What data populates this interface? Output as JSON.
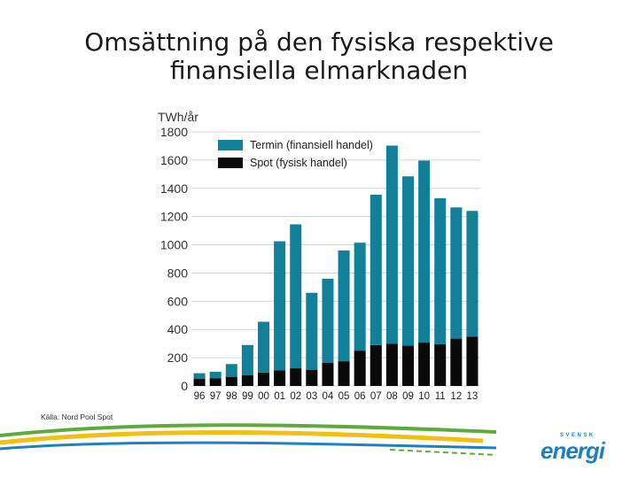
{
  "title": {
    "line1": "Omsättning på den fysiska respektive",
    "line2": "finansiella elmarknaden"
  },
  "source": "Källa: Nord Pool Spot",
  "logo": {
    "small": "SVENSK",
    "main": "energi"
  },
  "colors": {
    "termin": "#13809A",
    "spot": "#0a0a0a",
    "grid": "#d4d4d4"
  },
  "chart_data": {
    "type": "bar",
    "stacked": true,
    "ylabel": "TWh/år",
    "ylim": [
      0,
      1800
    ],
    "yticks": [
      "0",
      "200",
      "400",
      "600",
      "800",
      "1000",
      "1200",
      "1400",
      "1600",
      "1800"
    ],
    "grid": true,
    "legend": "top-right",
    "categories": [
      "96",
      "97",
      "98",
      "99",
      "00",
      "01",
      "02",
      "03",
      "04",
      "05",
      "06",
      "07",
      "08",
      "09",
      "10",
      "11",
      "12",
      "13"
    ],
    "series": [
      {
        "name": "Spot (fysisk handel)",
        "color": "#0a0a0a",
        "values": [
          50,
          55,
          65,
          75,
          95,
          110,
          125,
          115,
          165,
          175,
          250,
          290,
          298,
          285,
          307,
          295,
          335,
          350
        ]
      },
      {
        "name": "Termin (finansiell handel)",
        "color": "#13809A",
        "values": [
          40,
          45,
          90,
          215,
          360,
          915,
          1020,
          545,
          595,
          785,
          765,
          1065,
          1405,
          1200,
          1290,
          1035,
          930,
          890
        ]
      }
    ],
    "legend_entries": [
      "Termin (finansiell handel)",
      "Spot (fysisk handel)"
    ]
  }
}
